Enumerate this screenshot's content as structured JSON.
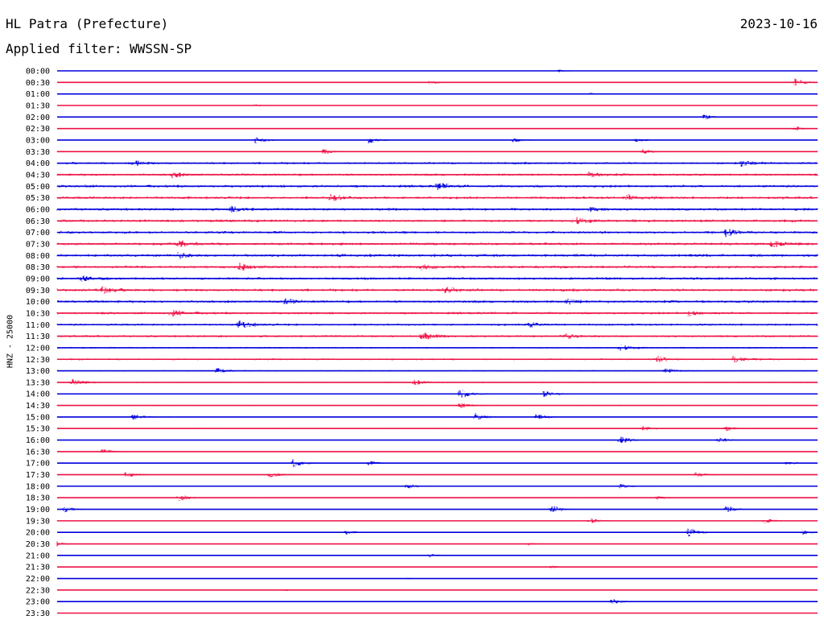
{
  "header": {
    "station": "HL Patra (Prefecture)",
    "date": "2023-10-16",
    "filter_text": "Applied filter: WWSSN-SP"
  },
  "chart_data": {
    "type": "line",
    "title": "HL Patra (Prefecture)",
    "side_label": "HNZ - 25000",
    "colors": [
      "#0000dd",
      "#ee1144"
    ],
    "traces": [
      {
        "time": "00:00",
        "activity": 0.02,
        "events": [
          {
            "pos": 0.66,
            "amp": 0.3
          }
        ]
      },
      {
        "time": "00:30",
        "activity": 0.08,
        "events": [
          {
            "pos": 0.49,
            "amp": 0.4
          },
          {
            "pos": 0.97,
            "amp": 0.9
          }
        ]
      },
      {
        "time": "01:00",
        "activity": 0.03,
        "events": [
          {
            "pos": 0.7,
            "amp": 0.3
          }
        ]
      },
      {
        "time": "01:30",
        "activity": 0.03,
        "events": [
          {
            "pos": 0.26,
            "amp": 0.3
          }
        ]
      },
      {
        "time": "02:00",
        "activity": 0.08,
        "events": [
          {
            "pos": 0.85,
            "amp": 0.6
          }
        ]
      },
      {
        "time": "02:30",
        "activity": 0.1,
        "events": [
          {
            "pos": 0.97,
            "amp": 0.5
          }
        ]
      },
      {
        "time": "03:00",
        "activity": 0.18,
        "events": [
          {
            "pos": 0.26,
            "amp": 0.8
          },
          {
            "pos": 0.41,
            "amp": 0.7
          },
          {
            "pos": 0.6,
            "amp": 0.4
          },
          {
            "pos": 0.76,
            "amp": 0.4
          }
        ]
      },
      {
        "time": "03:30",
        "activity": 0.25,
        "events": [
          {
            "pos": 0.35,
            "amp": 0.5
          },
          {
            "pos": 0.77,
            "amp": 0.4
          }
        ]
      },
      {
        "time": "04:00",
        "activity": 0.5,
        "events": [
          {
            "pos": 0.1,
            "amp": 0.6
          },
          {
            "pos": 0.9,
            "amp": 0.6
          }
        ]
      },
      {
        "time": "04:30",
        "activity": 0.55,
        "events": [
          {
            "pos": 0.15,
            "amp": 0.6
          },
          {
            "pos": 0.7,
            "amp": 0.5
          }
        ]
      },
      {
        "time": "05:00",
        "activity": 0.6,
        "events": [
          {
            "pos": 0.5,
            "amp": 0.7
          }
        ]
      },
      {
        "time": "05:30",
        "activity": 0.6,
        "events": [
          {
            "pos": 0.36,
            "amp": 0.7
          },
          {
            "pos": 0.75,
            "amp": 0.6
          }
        ]
      },
      {
        "time": "06:00",
        "activity": 0.6,
        "events": [
          {
            "pos": 0.23,
            "amp": 0.6
          },
          {
            "pos": 0.7,
            "amp": 0.5
          }
        ]
      },
      {
        "time": "06:30",
        "activity": 0.6,
        "events": [
          {
            "pos": 0.68,
            "amp": 0.7
          }
        ]
      },
      {
        "time": "07:00",
        "activity": 0.6,
        "events": [
          {
            "pos": 0.88,
            "amp": 0.8
          }
        ]
      },
      {
        "time": "07:30",
        "activity": 0.6,
        "events": [
          {
            "pos": 0.16,
            "amp": 0.7
          },
          {
            "pos": 0.94,
            "amp": 0.7
          }
        ]
      },
      {
        "time": "08:00",
        "activity": 0.65,
        "events": [
          {
            "pos": 0.16,
            "amp": 0.6
          }
        ]
      },
      {
        "time": "08:30",
        "activity": 0.6,
        "events": [
          {
            "pos": 0.24,
            "amp": 0.8
          },
          {
            "pos": 0.48,
            "amp": 0.6
          }
        ]
      },
      {
        "time": "09:00",
        "activity": 0.6,
        "events": [
          {
            "pos": 0.03,
            "amp": 0.6
          }
        ]
      },
      {
        "time": "09:30",
        "activity": 0.6,
        "events": [
          {
            "pos": 0.06,
            "amp": 0.6
          },
          {
            "pos": 0.51,
            "amp": 0.6
          }
        ]
      },
      {
        "time": "10:00",
        "activity": 0.6,
        "events": [
          {
            "pos": 0.3,
            "amp": 0.5
          },
          {
            "pos": 0.67,
            "amp": 0.5
          }
        ]
      },
      {
        "time": "10:30",
        "activity": 0.55,
        "events": [
          {
            "pos": 0.15,
            "amp": 0.7
          },
          {
            "pos": 0.83,
            "amp": 0.6
          }
        ]
      },
      {
        "time": "11:00",
        "activity": 0.5,
        "events": [
          {
            "pos": 0.24,
            "amp": 0.9
          },
          {
            "pos": 0.62,
            "amp": 0.6
          }
        ]
      },
      {
        "time": "11:30",
        "activity": 0.5,
        "events": [
          {
            "pos": 0.48,
            "amp": 0.8
          },
          {
            "pos": 0.67,
            "amp": 0.5
          }
        ]
      },
      {
        "time": "12:00",
        "activity": 0.35,
        "events": [
          {
            "pos": 0.74,
            "amp": 0.6
          }
        ]
      },
      {
        "time": "12:30",
        "activity": 0.4,
        "events": [
          {
            "pos": 0.79,
            "amp": 0.6
          },
          {
            "pos": 0.89,
            "amp": 0.7
          }
        ]
      },
      {
        "time": "13:00",
        "activity": 0.3,
        "events": [
          {
            "pos": 0.21,
            "amp": 0.5
          },
          {
            "pos": 0.8,
            "amp": 0.5
          }
        ]
      },
      {
        "time": "13:30",
        "activity": 0.3,
        "events": [
          {
            "pos": 0.02,
            "amp": 0.6
          },
          {
            "pos": 0.47,
            "amp": 0.5
          }
        ]
      },
      {
        "time": "14:00",
        "activity": 0.25,
        "events": [
          {
            "pos": 0.53,
            "amp": 1.0
          },
          {
            "pos": 0.64,
            "amp": 0.6
          }
        ]
      },
      {
        "time": "14:30",
        "activity": 0.25,
        "events": [
          {
            "pos": 0.53,
            "amp": 0.6
          }
        ]
      },
      {
        "time": "15:00",
        "activity": 0.2,
        "events": [
          {
            "pos": 0.1,
            "amp": 0.5
          },
          {
            "pos": 0.55,
            "amp": 0.7
          },
          {
            "pos": 0.63,
            "amp": 0.6
          }
        ]
      },
      {
        "time": "15:30",
        "activity": 0.2,
        "events": [
          {
            "pos": 0.77,
            "amp": 0.5
          },
          {
            "pos": 0.88,
            "amp": 0.5
          }
        ]
      },
      {
        "time": "16:00",
        "activity": 0.12,
        "events": [
          {
            "pos": 0.74,
            "amp": 0.9
          },
          {
            "pos": 0.87,
            "amp": 0.6
          }
        ]
      },
      {
        "time": "16:30",
        "activity": 0.12,
        "events": [
          {
            "pos": 0.06,
            "amp": 0.6
          }
        ]
      },
      {
        "time": "17:00",
        "activity": 0.12,
        "events": [
          {
            "pos": 0.31,
            "amp": 0.9
          },
          {
            "pos": 0.41,
            "amp": 0.5
          },
          {
            "pos": 0.96,
            "amp": 0.4
          }
        ]
      },
      {
        "time": "17:30",
        "activity": 0.18,
        "events": [
          {
            "pos": 0.09,
            "amp": 0.6
          },
          {
            "pos": 0.28,
            "amp": 0.6
          },
          {
            "pos": 0.84,
            "amp": 0.5
          }
        ]
      },
      {
        "time": "18:00",
        "activity": 0.15,
        "events": [
          {
            "pos": 0.46,
            "amp": 0.6
          },
          {
            "pos": 0.74,
            "amp": 0.5
          }
        ]
      },
      {
        "time": "18:30",
        "activity": 0.15,
        "events": [
          {
            "pos": 0.16,
            "amp": 0.8
          },
          {
            "pos": 0.79,
            "amp": 0.4
          }
        ]
      },
      {
        "time": "19:00",
        "activity": 0.12,
        "events": [
          {
            "pos": 0.01,
            "amp": 0.6
          },
          {
            "pos": 0.65,
            "amp": 0.9
          },
          {
            "pos": 0.88,
            "amp": 0.8
          }
        ]
      },
      {
        "time": "19:30",
        "activity": 0.12,
        "events": [
          {
            "pos": 0.7,
            "amp": 0.6
          },
          {
            "pos": 0.93,
            "amp": 0.6
          }
        ]
      },
      {
        "time": "20:00",
        "activity": 0.08,
        "events": [
          {
            "pos": 0.38,
            "amp": 0.5
          },
          {
            "pos": 0.83,
            "amp": 1.0
          },
          {
            "pos": 0.98,
            "amp": 0.5
          }
        ]
      },
      {
        "time": "20:30",
        "activity": 0.05,
        "events": [
          {
            "pos": 0.0,
            "amp": 0.5
          },
          {
            "pos": 0.62,
            "amp": 0.3
          }
        ]
      },
      {
        "time": "21:00",
        "activity": 0.06,
        "events": [
          {
            "pos": 0.49,
            "amp": 0.4
          }
        ]
      },
      {
        "time": "21:30",
        "activity": 0.05,
        "events": [
          {
            "pos": 0.65,
            "amp": 0.3
          }
        ]
      },
      {
        "time": "22:00",
        "activity": 0.03,
        "events": [
          {
            "pos": 0.46,
            "amp": 0.2
          }
        ]
      },
      {
        "time": "22:30",
        "activity": 0.04,
        "events": [
          {
            "pos": 0.3,
            "amp": 0.2
          }
        ]
      },
      {
        "time": "23:00",
        "activity": 0.08,
        "events": [
          {
            "pos": 0.73,
            "amp": 0.7
          }
        ]
      },
      {
        "time": "23:30",
        "activity": 0.02,
        "events": []
      }
    ]
  }
}
